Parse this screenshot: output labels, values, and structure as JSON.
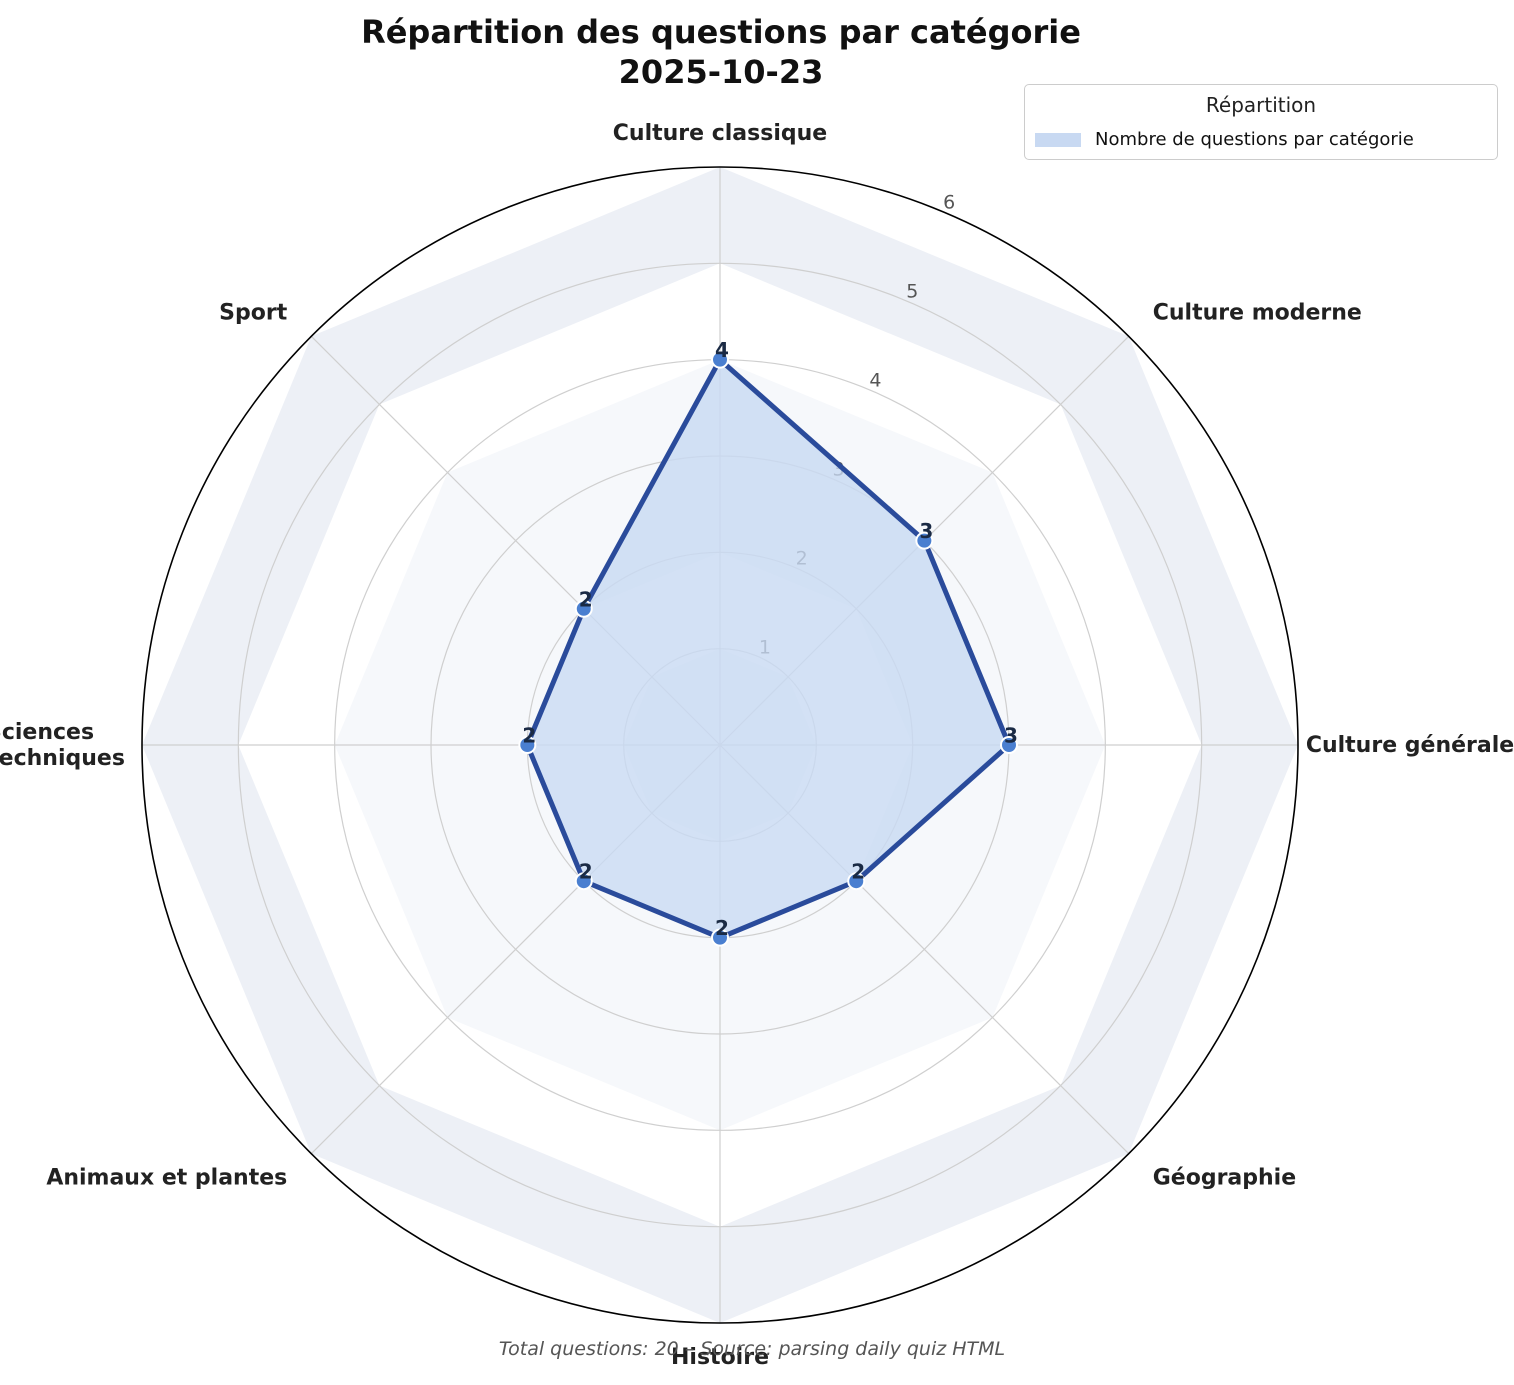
{
  "chart_data": {
    "type": "radar",
    "title_lines": [
      "Répartition des questions par catégorie",
      "2025-10-23"
    ],
    "categories": [
      "Culture classique",
      "Culture moderne",
      "Culture générale",
      "Géographie",
      "Histoire",
      "Animaux et plantes",
      "Sciences\net techniques",
      "Sport"
    ],
    "series": [
      {
        "name": "Nombre de questions par catégorie",
        "values": [
          4,
          3,
          3,
          2,
          2,
          2,
          2,
          2
        ]
      }
    ],
    "r_ticks": [
      "1",
      "2",
      "3",
      "4",
      "5",
      "6"
    ],
    "r_range": [
      0,
      6
    ],
    "grid": true,
    "legend": {
      "title": "Répartition",
      "placement": "top-right"
    },
    "footnote": "Total questions: 20 – Source: parsing daily quiz HTML",
    "colors": {
      "line": "#2a4b9b",
      "fill": "#c8d9f2",
      "marker": "#4a7fd0",
      "band": "#edf0f6"
    }
  }
}
